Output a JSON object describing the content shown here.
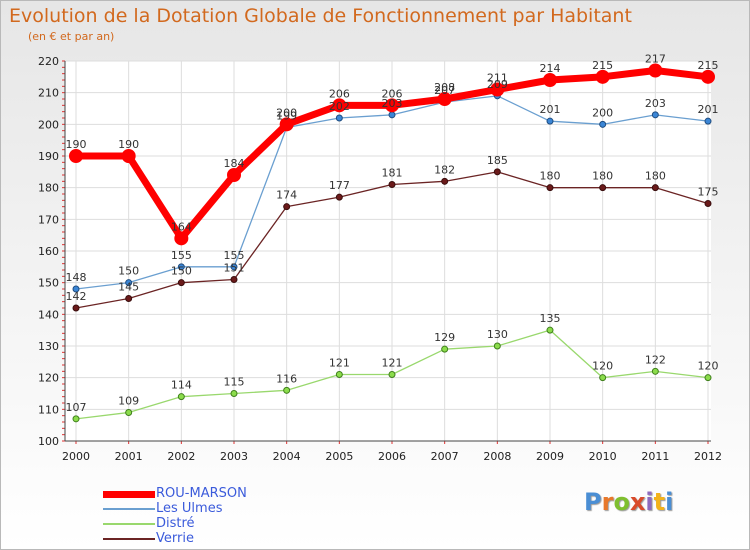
{
  "header": {
    "title": "Evolution de la Dotation Globale de Fonctionnement par Habitant",
    "subtitle": "(en € et par an)"
  },
  "brand": {
    "text": "Proxiti",
    "letter_colors": [
      "#4a8ed4",
      "#e8782a",
      "#7fbf2f",
      "#d94b2b",
      "#8e6bbf",
      "#f3b21a",
      "#4a8ed4"
    ]
  },
  "chart_data": {
    "type": "line",
    "title": "Evolution de la Dotation Globale de Fonctionnement par Habitant",
    "subtitle": "(en € et par an)",
    "xlabel": "",
    "ylabel": "",
    "x": [
      "2000",
      "2001",
      "2002",
      "2003",
      "2004",
      "2005",
      "2006",
      "2007",
      "2008",
      "2009",
      "2010",
      "2011",
      "2012"
    ],
    "ylim": [
      100,
      220
    ],
    "yticks": [
      100,
      110,
      120,
      130,
      140,
      150,
      160,
      170,
      180,
      190,
      200,
      210,
      220
    ],
    "grid": true,
    "legend_position": "bottom-left",
    "series": [
      {
        "name": "ROU-MARSON",
        "color": "#ff0000",
        "values": [
          190,
          190,
          164,
          184,
          200,
          206,
          206,
          208,
          211,
          214,
          215,
          217,
          215
        ]
      },
      {
        "name": "Les Ulmes",
        "color": "#6a9fd0",
        "values": [
          148,
          150,
          155,
          155,
          199,
          202,
          203,
          207,
          209,
          201,
          200,
          203,
          201
        ]
      },
      {
        "name": "Distré",
        "color": "#99d86d",
        "values": [
          107,
          109,
          114,
          115,
          116,
          121,
          121,
          129,
          130,
          135,
          120,
          122,
          120
        ]
      },
      {
        "name": "Verrie",
        "color": "#6b2424",
        "values": [
          142,
          145,
          150,
          151,
          174,
          177,
          181,
          182,
          185,
          180,
          180,
          180,
          175
        ]
      }
    ]
  }
}
